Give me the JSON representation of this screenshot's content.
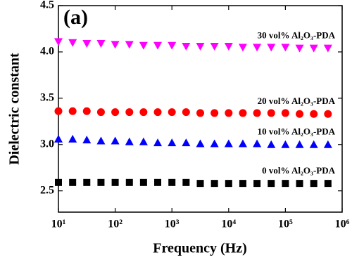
{
  "chart_data": {
    "type": "scatter",
    "annotation": "(a)",
    "x_label": "Frequency (Hz)",
    "y_label": "Dielectric constant",
    "xscale": "log",
    "grid": false,
    "xlim": [
      10,
      1000000
    ],
    "xticks": [
      {
        "value": 10,
        "label": "10¹"
      },
      {
        "value": 100,
        "label": "10²"
      },
      {
        "value": 1000,
        "label": "10³"
      },
      {
        "value": 10000,
        "label": "10⁴"
      },
      {
        "value": 100000,
        "label": "10⁵"
      },
      {
        "value": 1000000,
        "label": "10⁶"
      }
    ],
    "ylim": [
      2.27,
      4.5
    ],
    "yticks": [
      2.5,
      {
        "value": 3,
        "label": "3.0"
      },
      3.5,
      {
        "value": 4,
        "label": "4.0"
      },
      4.5
    ],
    "x": [
      10,
      17.8,
      31.6,
      56.2,
      100,
      178,
      316,
      562,
      1000,
      1778,
      3162,
      5623,
      10000,
      17783,
      31623,
      56234,
      100000,
      177828,
      316228,
      562341
    ],
    "series": [
      {
        "name": "30 vol% Al₂O₃-PDA",
        "color": "#ff00ff",
        "marker": "triangle-down",
        "values": [
          4.11,
          4.1,
          4.09,
          4.09,
          4.08,
          4.08,
          4.07,
          4.07,
          4.07,
          4.06,
          4.06,
          4.06,
          4.06,
          4.05,
          4.05,
          4.05,
          4.05,
          4.04,
          4.04,
          4.04
        ]
      },
      {
        "name": "20 vol% Al₂O₃-PDA",
        "color": "#ff0000",
        "marker": "circle",
        "values": [
          3.36,
          3.36,
          3.36,
          3.35,
          3.35,
          3.35,
          3.35,
          3.35,
          3.35,
          3.35,
          3.34,
          3.34,
          3.34,
          3.34,
          3.34,
          3.34,
          3.34,
          3.33,
          3.33,
          3.33
        ]
      },
      {
        "name": "10 vol% Al₂O₃-PDA",
        "color": "#0000ff",
        "marker": "triangle-up",
        "values": [
          3.06,
          3.06,
          3.05,
          3.04,
          3.04,
          3.03,
          3.03,
          3.02,
          3.02,
          3.02,
          3.01,
          3.01,
          3.01,
          3.01,
          3.01,
          3.0,
          3.0,
          3.0,
          3.0,
          3.0
        ]
      },
      {
        "name": "0 vol% Al₂O₃-PDA",
        "color": "#000000",
        "marker": "square",
        "values": [
          2.59,
          2.59,
          2.59,
          2.59,
          2.59,
          2.59,
          2.59,
          2.59,
          2.59,
          2.59,
          2.58,
          2.58,
          2.58,
          2.58,
          2.58,
          2.58,
          2.58,
          2.58,
          2.58,
          2.58
        ]
      }
    ]
  }
}
